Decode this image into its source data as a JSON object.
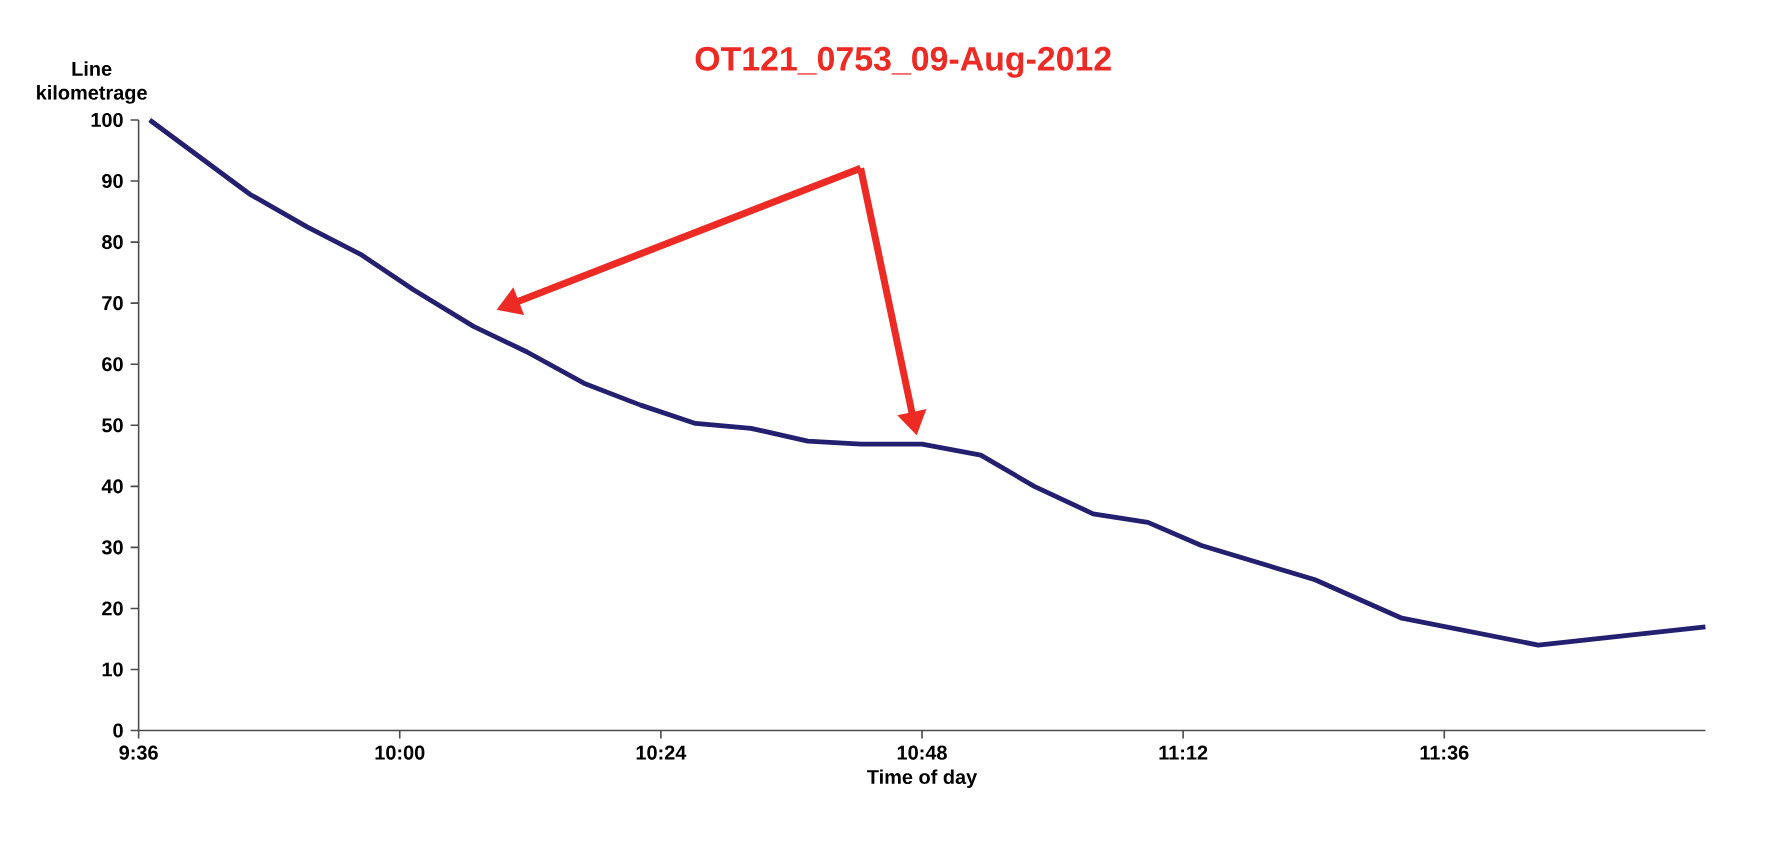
{
  "chart_data": {
    "type": "line",
    "title": "OT121_0753_09-Aug-2012",
    "xlabel": "Time of day",
    "ylabel": "Line kilometrage",
    "xlim": [
      9.6,
      12.0
    ],
    "ylim": [
      0,
      100
    ],
    "xticks": [
      {
        "value": 9.6,
        "label": "9:36"
      },
      {
        "value": 10.0,
        "label": "10:00"
      },
      {
        "value": 10.4,
        "label": "10:24"
      },
      {
        "value": 10.8,
        "label": "10:48"
      },
      {
        "value": 11.2,
        "label": "11:12"
      },
      {
        "value": 11.6,
        "label": "11:36"
      }
    ],
    "yticks": [
      0,
      10,
      20,
      30,
      40,
      50,
      60,
      70,
      80,
      90,
      100
    ],
    "grid": false,
    "marker": "none",
    "line_style": "solid",
    "series": [
      {
        "color": "#232070",
        "x": [
          9.617,
          9.771,
          9.858,
          9.94,
          10.021,
          10.113,
          10.195,
          10.282,
          10.369,
          10.453,
          10.538,
          10.625,
          10.707,
          10.8,
          10.89,
          10.972,
          11.062,
          11.146,
          11.228,
          11.402,
          11.535,
          11.744,
          12.0
        ],
        "values": [
          100,
          87.8,
          82.5,
          78.0,
          72.2,
          66.2,
          62.0,
          56.9,
          53.3,
          50.3,
          49.5,
          47.4,
          46.9,
          46.9,
          45.1,
          40.0,
          35.5,
          34.1,
          30.3,
          24.7,
          18.4,
          14.0,
          17.0
        ]
      }
    ]
  }
}
